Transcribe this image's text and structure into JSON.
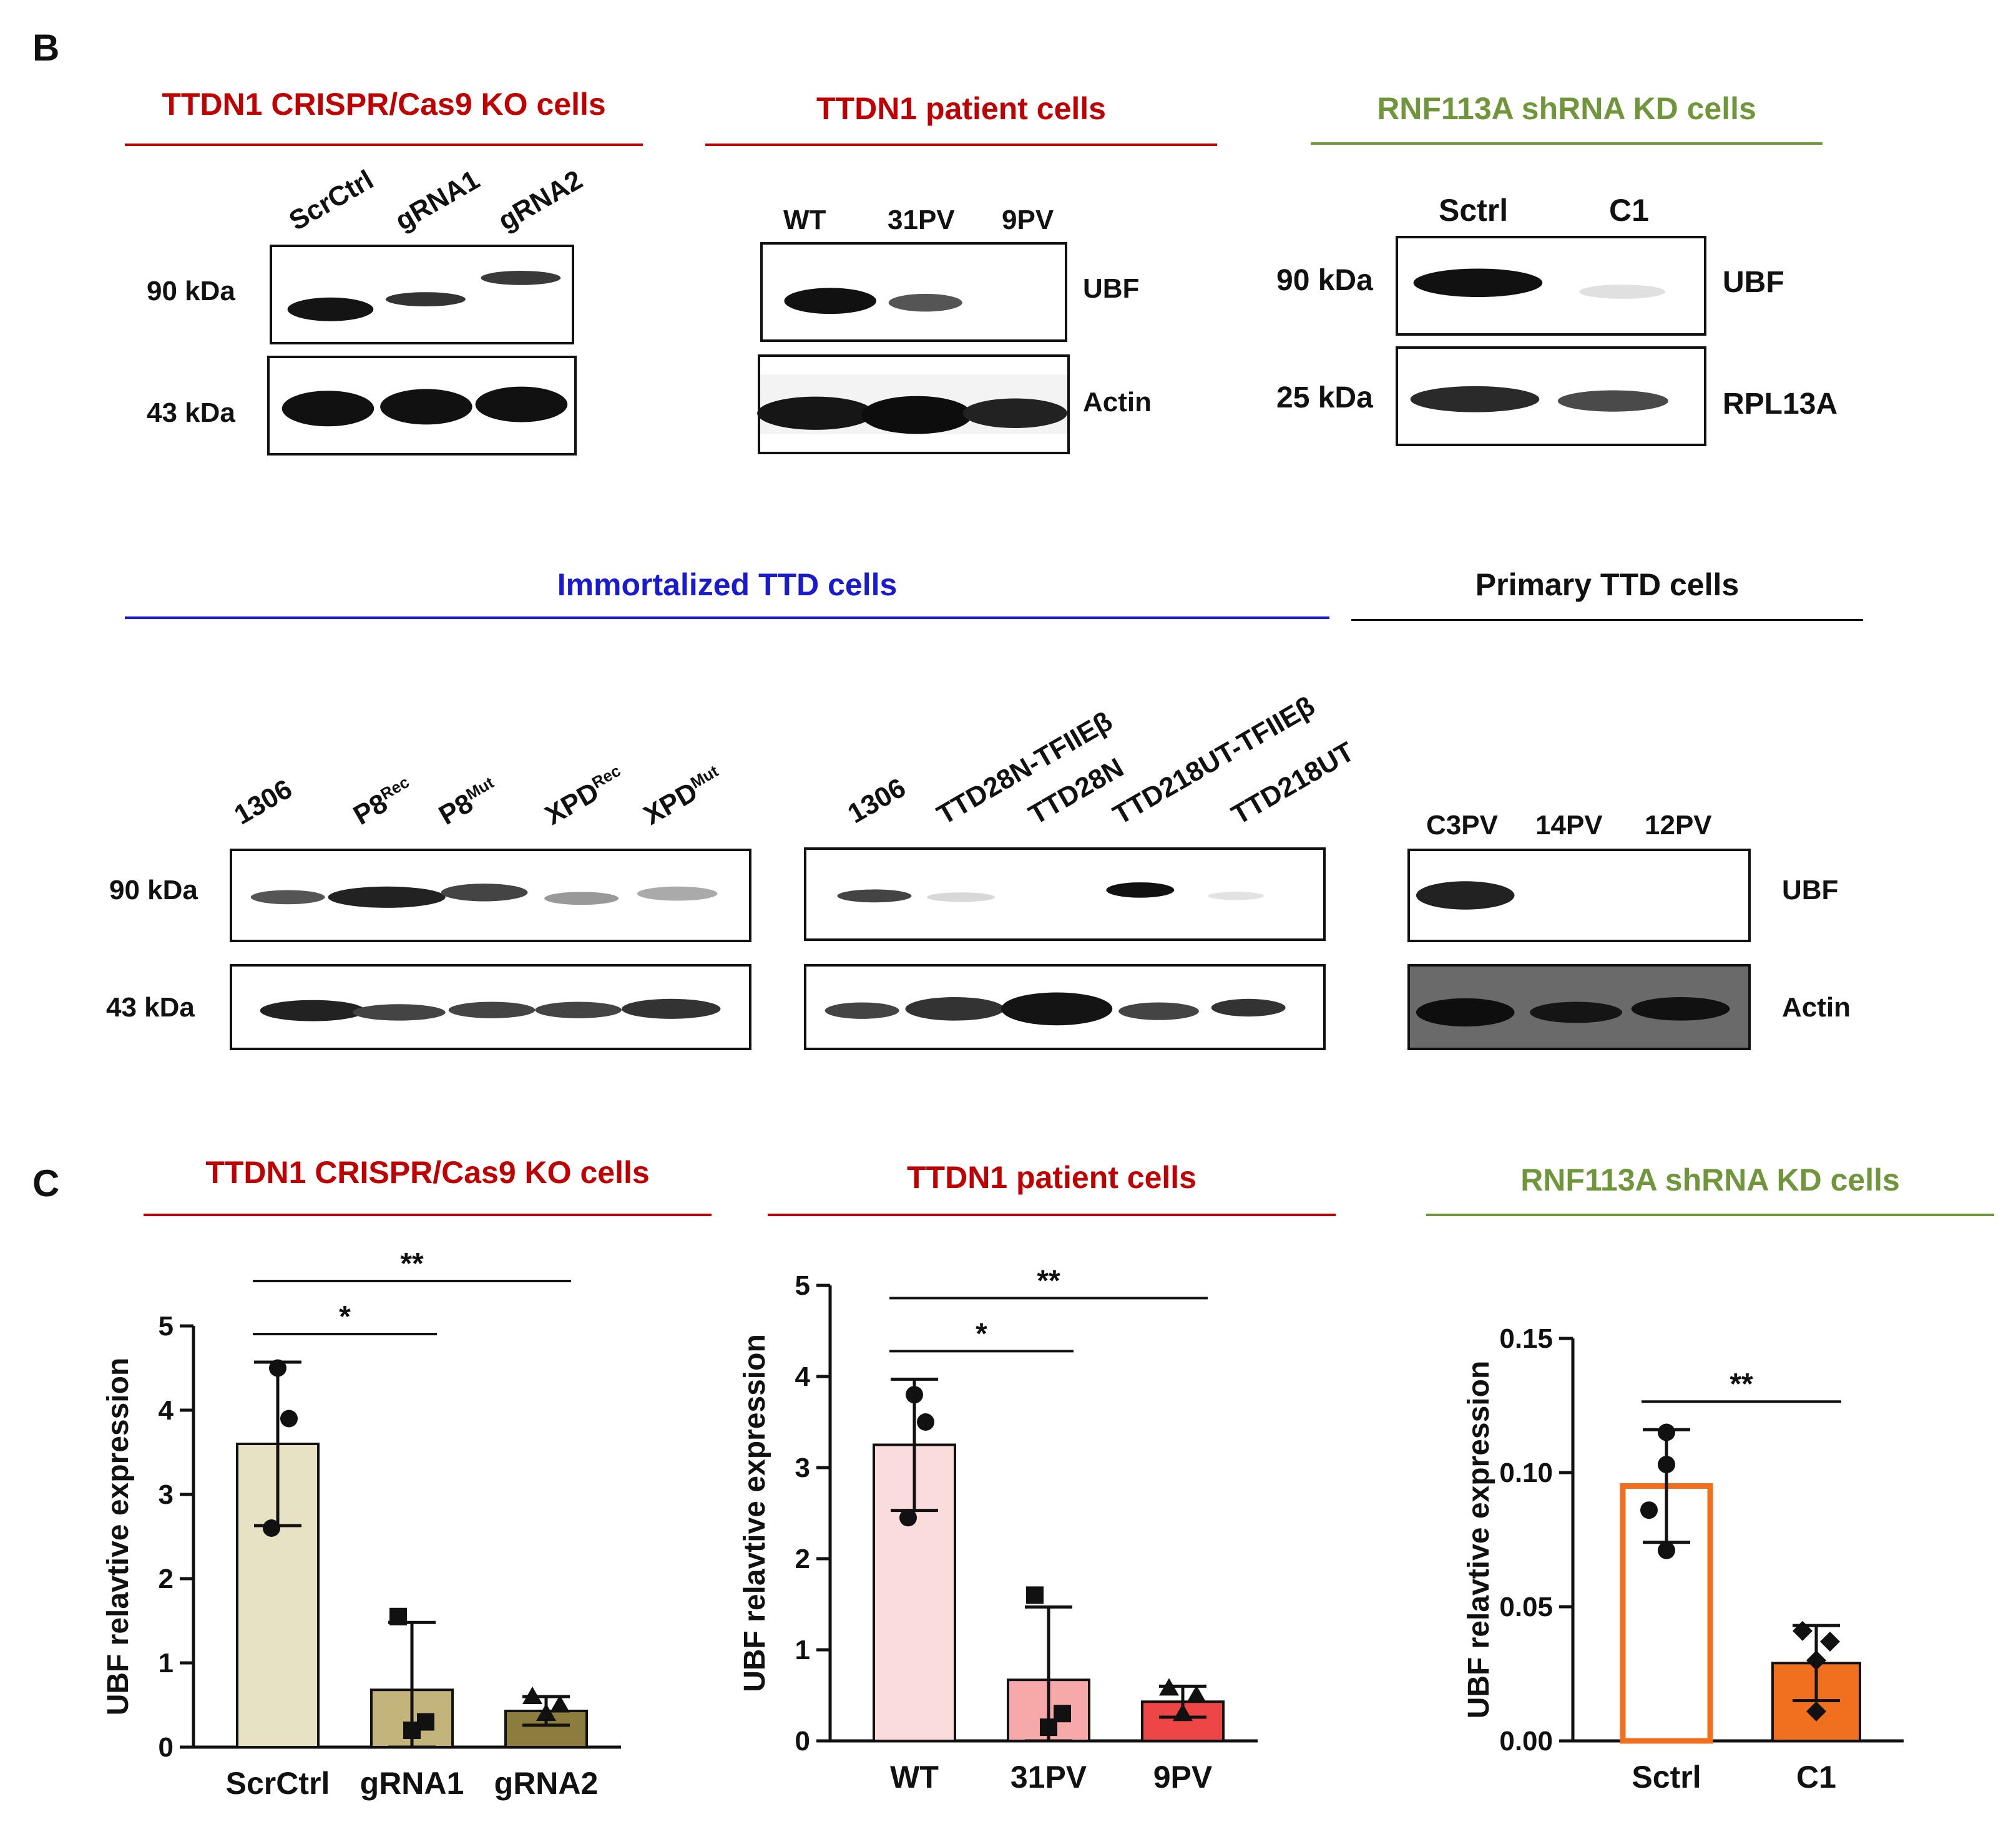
{
  "panel_b": {
    "letter": "B",
    "crispr": {
      "title": "TTDN1 CRISPR/Cas9 KO cells",
      "lanes": [
        "ScrCtrl",
        "gRNA1",
        "gRNA2"
      ],
      "mw_top": "90 kDa",
      "mw_bottom": "43 kDa"
    },
    "patient": {
      "title": "TTDN1 patient cells",
      "lanes": [
        "WT",
        "31PV",
        "9PV"
      ],
      "label_top": "UBF",
      "label_bottom": "Actin"
    },
    "rnf": {
      "title": "RNF113A shRNA KD  cells",
      "lanes": [
        "Sctrl",
        "C1"
      ],
      "mw_top": "90 kDa",
      "mw_bottom": "25 kDa",
      "label_top": "UBF",
      "label_bottom": "RPL13A"
    },
    "immortalized": {
      "title": "Immortalized TTD cells",
      "mw_top": "90 kDa",
      "mw_bottom": "43 kDa",
      "lanes_a": [
        {
          "base": "1306",
          "sup": ""
        },
        {
          "base": "P8",
          "sup": "Rec"
        },
        {
          "base": "P8",
          "sup": "Mut"
        },
        {
          "base": "XPD",
          "sup": "Rec"
        },
        {
          "base": "XPD",
          "sup": "Mut"
        }
      ],
      "lanes_b": [
        "1306",
        "TTD28N-TFIIEβ",
        "TTD28N",
        "TTD218UT-TFIIEβ",
        "TTD218UT"
      ]
    },
    "primary": {
      "title": "Primary TTD cells",
      "lanes": [
        "C3PV",
        "14PV",
        "12PV"
      ],
      "label_top": "UBF",
      "label_bottom": "Actin"
    }
  },
  "panel_c": {
    "letter": "C",
    "titles": [
      "TTDN1 CRISPR/Cas9 KO cells",
      "TTDN1 patient cells",
      "RNF113A shRNA KD  cells"
    ]
  },
  "colors": {
    "red_title": "#c00000",
    "green_title": "#70963c",
    "blue_title": "#1a1ad0",
    "black_title": "#111111"
  },
  "chart_data": [
    {
      "type": "bar",
      "title": "TTDN1 CRISPR/Cas9 KO cells",
      "categories": [
        "ScrCtrl",
        "gRNA1",
        "gRNA2"
      ],
      "values": [
        3.6,
        0.68,
        0.43
      ],
      "errors": [
        0.97,
        0.8,
        0.17
      ],
      "points": [
        [
          4.5,
          3.9,
          2.6
        ],
        [
          1.55,
          0.3,
          0.2
        ],
        [
          0.6,
          0.5,
          0.4
        ]
      ],
      "markers": [
        "circle",
        "square",
        "triangle"
      ],
      "fills": [
        "#e8e2c4",
        "#c2b47a",
        "#8c7c3e"
      ],
      "strokes": [
        "#111111",
        "#111111",
        "#111111"
      ],
      "ylabel": "UBF relavtive expression",
      "ylim": [
        0,
        5
      ],
      "yticks": [
        "0",
        "1",
        "2",
        "3",
        "4",
        "5"
      ],
      "significance": [
        {
          "from": 0,
          "to": 1,
          "label": "*"
        },
        {
          "from": 0,
          "to": 2,
          "label": "**"
        }
      ]
    },
    {
      "type": "bar",
      "title": "TTDN1 patient cells",
      "categories": [
        "WT",
        "31PV",
        "9PV"
      ],
      "values": [
        3.25,
        0.67,
        0.43
      ],
      "errors": [
        0.72,
        0.8,
        0.17
      ],
      "points": [
        [
          3.8,
          3.5,
          2.45
        ],
        [
          1.6,
          0.3,
          0.15
        ],
        [
          0.58,
          0.5,
          0.3
        ]
      ],
      "markers": [
        "circle",
        "square",
        "triangle"
      ],
      "fills": [
        "#fbdcdc",
        "#f7a8a8",
        "#ee4646"
      ],
      "strokes": [
        "#111111",
        "#111111",
        "#111111"
      ],
      "ylabel": "UBF relavtive expression",
      "ylim": [
        0,
        5
      ],
      "yticks": [
        "0",
        "1",
        "2",
        "3",
        "4",
        "5"
      ],
      "significance": [
        {
          "from": 0,
          "to": 1,
          "label": "*"
        },
        {
          "from": 0,
          "to": 2,
          "label": "**"
        }
      ]
    },
    {
      "type": "bar",
      "title": "RNF113A shRNA KD  cells",
      "categories": [
        "Sctrl",
        "C1"
      ],
      "values": [
        0.095,
        0.029
      ],
      "errors": [
        0.021,
        0.014
      ],
      "points": [
        [
          0.115,
          0.103,
          0.086,
          0.071
        ],
        [
          0.041,
          0.037,
          0.03,
          0.011
        ]
      ],
      "markers": [
        "circle",
        "diamond"
      ],
      "fills": [
        "#ffffff",
        "#f07020"
      ],
      "strokes": [
        "#f07020",
        "#111111"
      ],
      "ylabel": "UBF relavtive expression",
      "ylim": [
        0,
        0.15
      ],
      "yticks": [
        "0.00",
        "0.05",
        "0.10",
        "0.15"
      ],
      "significance": [
        {
          "from": 0,
          "to": 1,
          "label": "**"
        }
      ]
    }
  ]
}
